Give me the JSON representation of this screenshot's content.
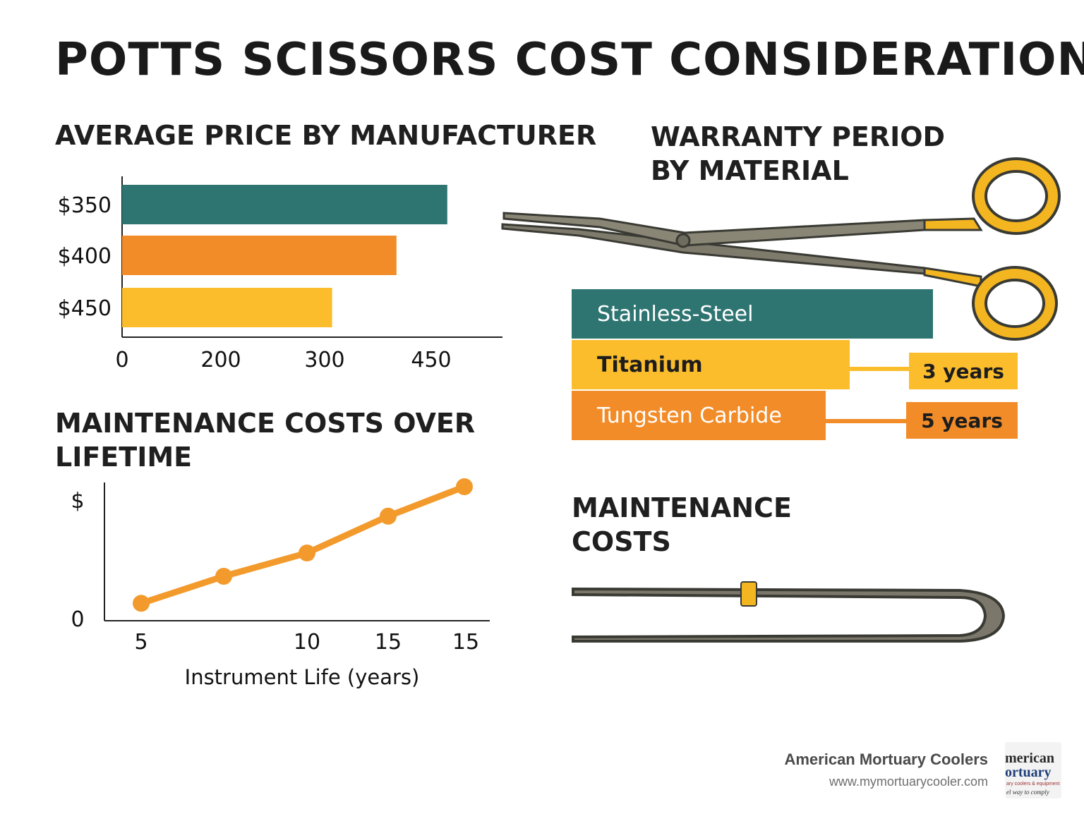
{
  "title": "POTTS SCISSORS COST CONSIDERATIONS",
  "sections": {
    "price": "AVERAGE PRICE BY MANUFACTURER",
    "warranty": "WARRANTY PERIOD BY MATERIAL",
    "maintenance_chart": "MAINTENANCE COSTS OVER LIFETIME",
    "maintenance": "MAINTENANCE COSTS"
  },
  "chart_data": [
    {
      "type": "bar",
      "orientation": "horizontal",
      "title": "AVERAGE PRICE BY MANUFACTURER",
      "categories": [
        "$350",
        "$400",
        "$450"
      ],
      "values": [
        480,
        405,
        310
      ],
      "colors": [
        "#2e7571",
        "#f28c28",
        "#fbbd2c"
      ],
      "x_ticks": [
        "0",
        "200",
        "300",
        "450"
      ],
      "grid": false
    },
    {
      "type": "bar",
      "orientation": "horizontal",
      "title": "WARRANTY PERIOD BY MATERIAL",
      "categories": [
        "Stainless-Steel",
        "Titanium",
        "Tungsten Carbide"
      ],
      "values": [
        1,
        0.77,
        0.7
      ],
      "annotations": [
        "",
        "3 years",
        "5 years"
      ],
      "colors": [
        "#2e7571",
        "#fbbd2c",
        "#f28c28"
      ]
    },
    {
      "type": "line",
      "title": "MAINTENANCE COSTS OVER LIFETIME",
      "xlabel": "Instrument Life (years)",
      "y_ticks": [
        "$",
        "0"
      ],
      "x_ticks": [
        "5",
        "10",
        "15",
        "15"
      ],
      "values": [
        0.05,
        0.27,
        0.46,
        0.76,
        1.0
      ],
      "color": "#f39a2c",
      "grid": false
    }
  ],
  "footer": {
    "brand": "American Mortuary Coolers",
    "url": "www.mymortuarycooler.com",
    "logo_lines": [
      "merican",
      "ortuary",
      "ary coolers & equipment",
      "el way to comply"
    ]
  }
}
